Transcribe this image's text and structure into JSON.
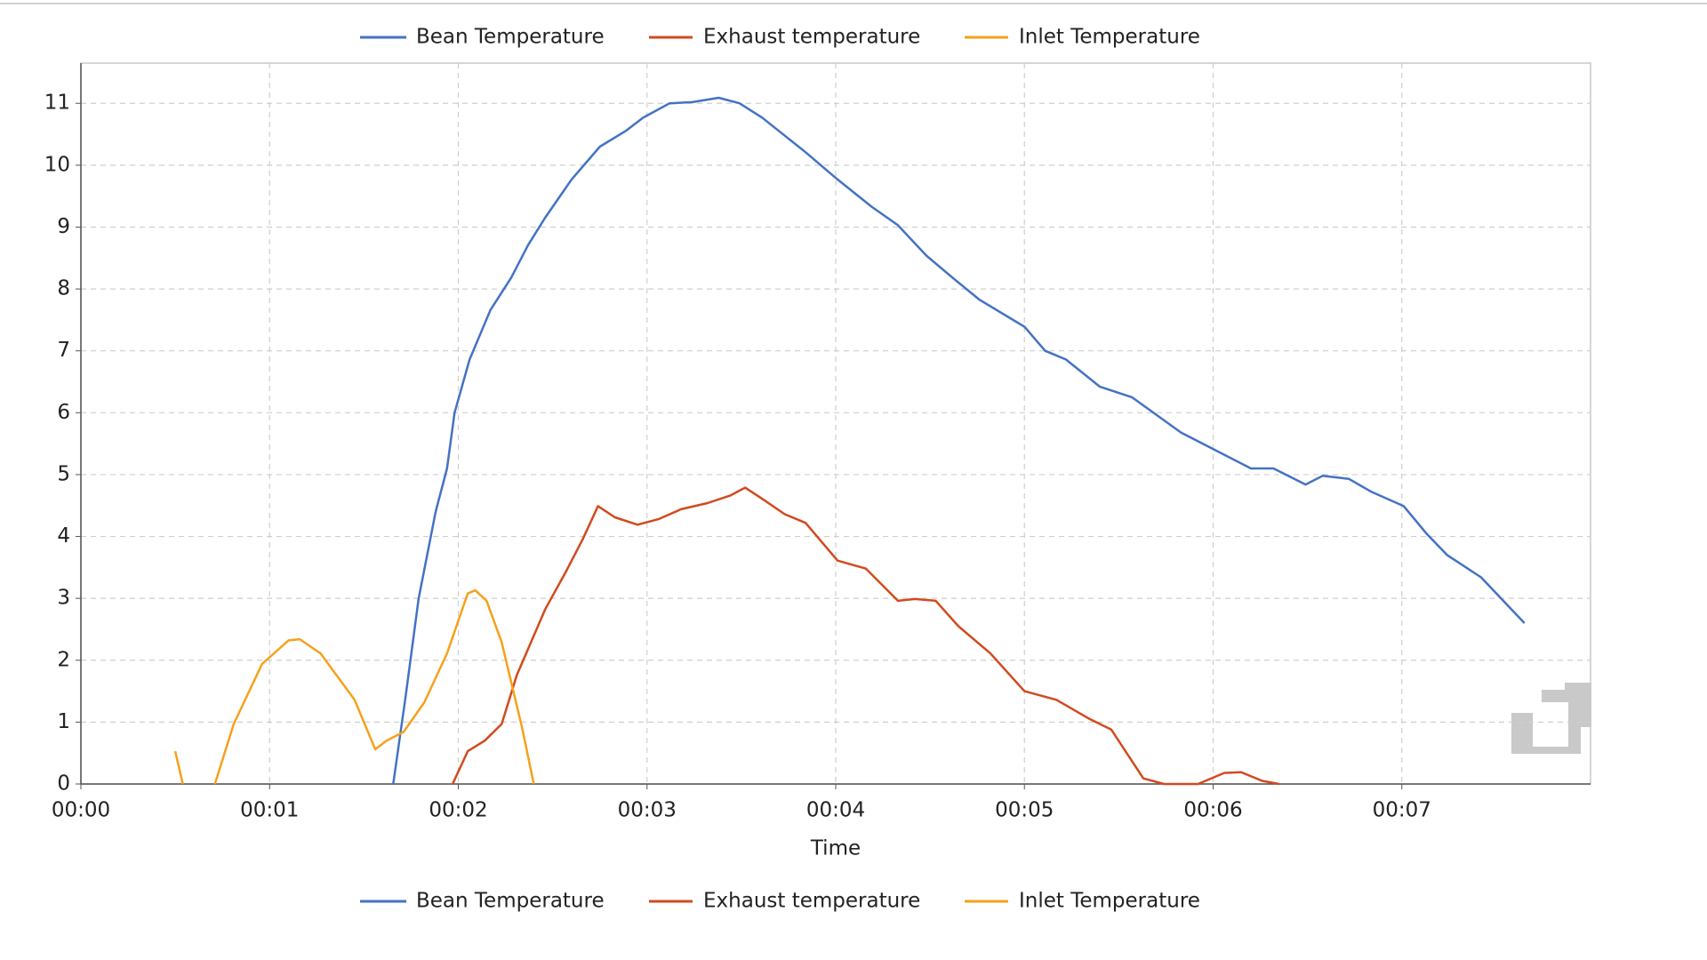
{
  "chart_data": {
    "type": "line",
    "xlabel": "Time",
    "grid": true,
    "legend": "top and bottom",
    "xlim": [
      0,
      8
    ],
    "ylim": [
      0,
      11.65
    ],
    "xticks": [
      {
        "value": 0,
        "label": "00:00"
      },
      {
        "value": 1,
        "label": "00:01"
      },
      {
        "value": 2,
        "label": "00:02"
      },
      {
        "value": 3,
        "label": "00:03"
      },
      {
        "value": 4,
        "label": "00:04"
      },
      {
        "value": 5,
        "label": "00:05"
      },
      {
        "value": 6,
        "label": "00:06"
      },
      {
        "value": 7,
        "label": "00:07"
      }
    ],
    "yticks": [
      0,
      1,
      2,
      3,
      4,
      5,
      6,
      7,
      8,
      9,
      10,
      11
    ],
    "series": [
      {
        "name": "Bean Temperature",
        "color": "#4472c4",
        "x": [
          1.655,
          1.72,
          1.79,
          1.88,
          1.94,
          1.98,
          2.06,
          2.17,
          2.28,
          2.37,
          2.46,
          2.6,
          2.75,
          2.89,
          2.98,
          3.12,
          3.24,
          3.38,
          3.49,
          3.61,
          3.84,
          4.01,
          4.19,
          4.33,
          4.48,
          4.62,
          4.76,
          5.0,
          5.11,
          5.22,
          5.4,
          5.57,
          5.83,
          5.97,
          6.2,
          6.32,
          6.49,
          6.58,
          6.72,
          6.84,
          7.01,
          7.13,
          7.24,
          7.42,
          7.65
        ],
        "values": [
          0,
          1.4,
          3.0,
          4.4,
          5.1,
          6.0,
          6.86,
          7.66,
          8.18,
          8.71,
          9.15,
          9.77,
          10.3,
          10.56,
          10.77,
          11.0,
          11.02,
          11.09,
          11.0,
          10.77,
          10.21,
          9.77,
          9.33,
          9.03,
          8.54,
          8.18,
          7.83,
          7.39,
          7.0,
          6.86,
          6.42,
          6.25,
          5.68,
          5.46,
          5.1,
          5.1,
          4.84,
          4.98,
          4.93,
          4.72,
          4.49,
          4.05,
          3.7,
          3.34,
          2.6
        ]
      },
      {
        "name": "Exhaust temperature",
        "color": "#d24a1f",
        "x": [
          1.97,
          2.05,
          2.14,
          2.23,
          2.31,
          2.46,
          2.57,
          2.66,
          2.74,
          2.83,
          2.95,
          3.06,
          3.18,
          3.32,
          3.44,
          3.52,
          3.61,
          3.73,
          3.84,
          4.01,
          4.16,
          4.33,
          4.42,
          4.53,
          4.65,
          4.82,
          5.0,
          5.17,
          5.34,
          5.46,
          5.63,
          5.74,
          5.92,
          6.06,
          6.15,
          6.26,
          6.35
        ],
        "values": [
          0,
          0.53,
          0.7,
          0.97,
          1.76,
          2.82,
          3.43,
          3.96,
          4.49,
          4.31,
          4.19,
          4.28,
          4.44,
          4.54,
          4.66,
          4.79,
          4.61,
          4.36,
          4.22,
          3.61,
          3.48,
          2.96,
          2.99,
          2.96,
          2.55,
          2.11,
          1.5,
          1.36,
          1.06,
          0.88,
          0.09,
          0,
          0,
          0.18,
          0.19,
          0.05,
          0
        ]
      },
      {
        "name": "Inlet Temperature",
        "color": "#f5a11c",
        "x": [
          0.5,
          0.54,
          0.62,
          0.71,
          0.81,
          0.96,
          1.1,
          1.16,
          1.27,
          1.45,
          1.56,
          1.62,
          1.71,
          1.82,
          1.94,
          2.05,
          2.09,
          2.15,
          2.23,
          2.34,
          2.4
        ],
        "values": [
          0.53,
          0,
          null,
          0,
          0.97,
          1.94,
          2.32,
          2.34,
          2.11,
          1.36,
          0.56,
          0.7,
          0.84,
          1.32,
          2.11,
          3.08,
          3.13,
          2.96,
          2.29,
          0.88,
          0
        ]
      }
    ]
  }
}
